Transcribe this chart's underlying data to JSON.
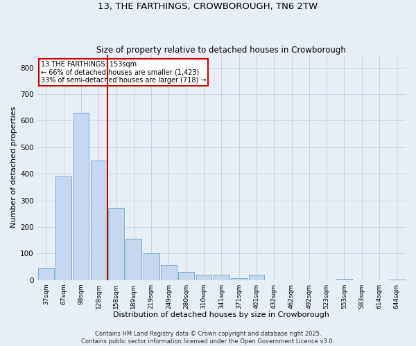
{
  "title1": "13, THE FARTHINGS, CROWBOROUGH, TN6 2TW",
  "title2": "Size of property relative to detached houses in Crowborough",
  "xlabel": "Distribution of detached houses by size in Crowborough",
  "ylabel": "Number of detached properties",
  "bar_labels": [
    "37sqm",
    "67sqm",
    "98sqm",
    "128sqm",
    "158sqm",
    "189sqm",
    "219sqm",
    "249sqm",
    "280sqm",
    "310sqm",
    "341sqm",
    "371sqm",
    "401sqm",
    "432sqm",
    "462sqm",
    "492sqm",
    "523sqm",
    "553sqm",
    "583sqm",
    "614sqm",
    "644sqm"
  ],
  "bar_values": [
    45,
    390,
    630,
    450,
    270,
    155,
    100,
    55,
    30,
    20,
    20,
    8,
    20,
    0,
    0,
    0,
    0,
    5,
    0,
    0,
    2
  ],
  "bar_color": "#c5d8f0",
  "bar_edge_color": "#7aadd4",
  "grid_color": "#c8d4e3",
  "bg_color": "#e8eef5",
  "vline_color": "#cc0000",
  "annotation_text": "13 THE FARTHINGS: 153sqm\n← 66% of detached houses are smaller (1,423)\n33% of semi-detached houses are larger (718) →",
  "annotation_box_color": "#ffffff",
  "annotation_box_edge": "#cc0000",
  "footer": "Contains HM Land Registry data © Crown copyright and database right 2025.\nContains public sector information licensed under the Open Government Licence v3.0.",
  "ylim": [
    0,
    850
  ],
  "yticks": [
    0,
    100,
    200,
    300,
    400,
    500,
    600,
    700,
    800
  ]
}
